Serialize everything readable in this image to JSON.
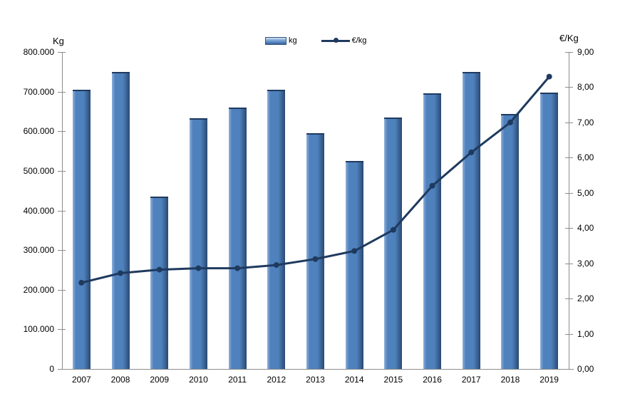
{
  "chart_data": {
    "type": "combo-bar-line",
    "categories": [
      "2007",
      "2008",
      "2009",
      "2010",
      "2011",
      "2012",
      "2013",
      "2014",
      "2015",
      "2016",
      "2017",
      "2018",
      "2019"
    ],
    "series": [
      {
        "name": "kg",
        "type": "bar",
        "axis": "left",
        "values": [
          705000,
          750000,
          435000,
          632000,
          660000,
          705000,
          595000,
          525000,
          635000,
          695000,
          750000,
          643000,
          698000
        ]
      },
      {
        "name": "€/kg",
        "type": "line",
        "axis": "right",
        "values": [
          2.45,
          2.72,
          2.82,
          2.86,
          2.86,
          2.95,
          3.12,
          3.35,
          3.95,
          5.2,
          6.15,
          7.0,
          8.3
        ]
      }
    ],
    "left_axis": {
      "title": "Kg",
      "min": 0,
      "max": 800000,
      "step": 100000,
      "tick_labels": [
        "0",
        "100.000",
        "200.000",
        "300.000",
        "400.000",
        "500.000",
        "600.000",
        "700.000",
        "800.000"
      ]
    },
    "right_axis": {
      "title": "€/Kg",
      "min": 0,
      "max": 9,
      "step": 1,
      "tick_labels": [
        "0,00",
        "1,00",
        "2,00",
        "3,00",
        "4,00",
        "5,00",
        "6,00",
        "7,00",
        "8,00",
        "9,00"
      ]
    },
    "legend": {
      "position": "top-center",
      "items": [
        {
          "label": "kg",
          "swatch": "bar"
        },
        {
          "label": "€/kg",
          "swatch": "line-marker"
        }
      ]
    },
    "grid": "off",
    "title": "",
    "colors": {
      "bar_fill": "#4f81bd",
      "bar_highlight": "#8fb0da",
      "bar_shadow": "#2a4a72",
      "bar_edge": "#1f3a5f",
      "line": "#1f3a5f",
      "axis_line": "#8c8c8c",
      "label_text": "#000000",
      "background": "#ffffff"
    }
  }
}
